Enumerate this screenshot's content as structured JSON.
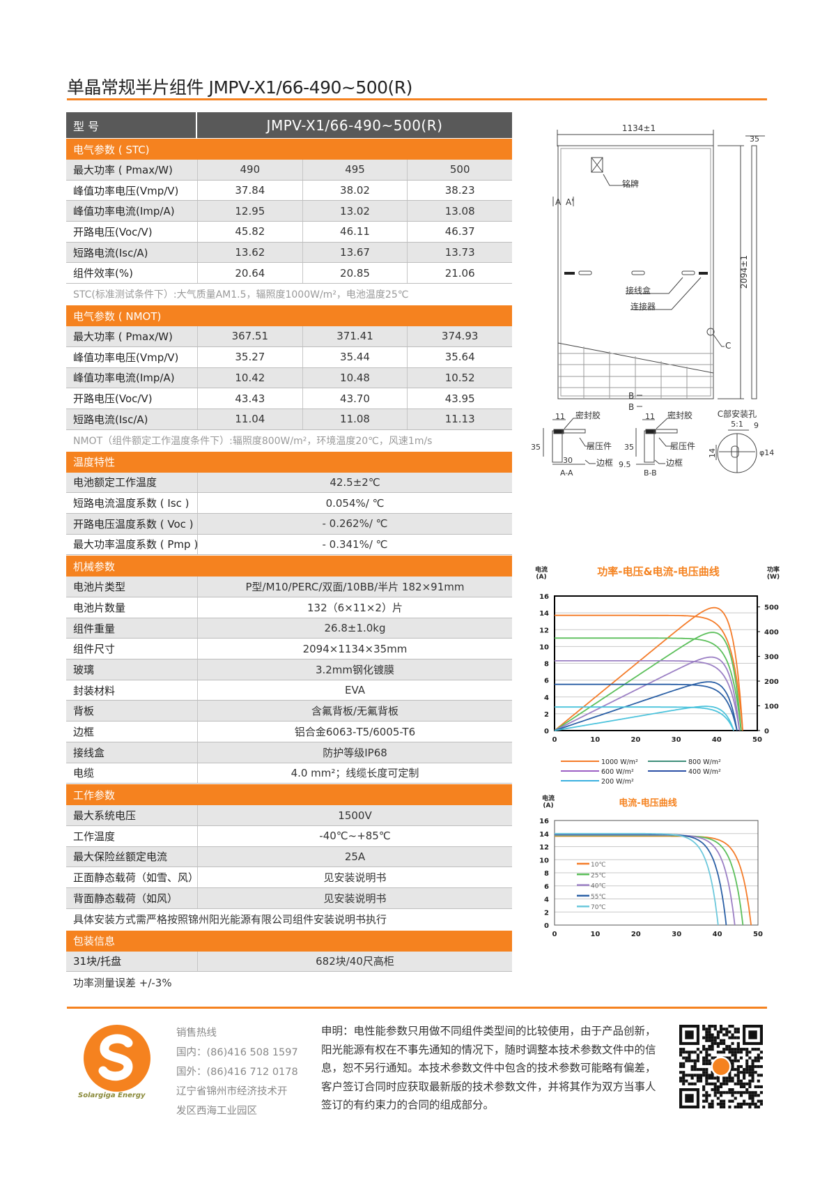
{
  "title": "单晶常规半片组件 JMPV-X1/66-490~500(R)",
  "colors": {
    "accent": "#f5821f",
    "header": "#595959",
    "row_alt": "#e6e6e6"
  },
  "spec_header": {
    "label": "型 号",
    "model": "JMPV-X1/66-490~500(R)"
  },
  "sections": [
    {
      "title": "电气参数 ( STC)",
      "rows": [
        {
          "label": "最大功率 ( Pmax/W)",
          "values": [
            "490",
            "495",
            "500"
          ]
        },
        {
          "label": "峰值功率电压(Vmp/V)",
          "values": [
            "37.84",
            "38.02",
            "38.23"
          ]
        },
        {
          "label": "峰值功率电流(Imp/A)",
          "values": [
            "12.95",
            "13.02",
            "13.08"
          ]
        },
        {
          "label": "开路电压(Voc/V)",
          "values": [
            "45.82",
            "46.11",
            "46.37"
          ]
        },
        {
          "label": "短路电流(Isc/A)",
          "values": [
            "13.62",
            "13.67",
            "13.73"
          ]
        },
        {
          "label": "组件效率(%)",
          "values": [
            "20.64",
            "20.85",
            "21.06"
          ]
        }
      ],
      "note": "STC(标准测试条件下）:大气质量AM1.5，辐照度1000W/m²，电池温度25℃"
    },
    {
      "title": "电气参数 ( NMOT)",
      "rows": [
        {
          "label": "最大功率 ( Pmax/W)",
          "values": [
            "367.51",
            "371.41",
            "374.93"
          ]
        },
        {
          "label": "峰值功率电压(Vmp/V)",
          "values": [
            "35.27",
            "35.44",
            "35.64"
          ]
        },
        {
          "label": "峰值功率电流(Imp/A)",
          "values": [
            "10.42",
            "10.48",
            "10.52"
          ]
        },
        {
          "label": "开路电压(Voc/V)",
          "values": [
            "43.43",
            "43.70",
            "43.95"
          ]
        },
        {
          "label": "短路电流(Isc/A)",
          "values": [
            "11.04",
            "11.08",
            "11.13"
          ]
        }
      ],
      "note": "NMOT（组件额定工作温度条件下）:辐照度800W/m²，环境温度20℃，风速1m/s"
    },
    {
      "title": "温度特性",
      "rows": [
        {
          "label": "电池额定工作温度",
          "values": [
            "42.5±2℃"
          ]
        },
        {
          "label": "短路电流温度系数 ( Isc )",
          "values": [
            "0.054%/ ℃"
          ]
        },
        {
          "label": "开路电压温度系数 ( Voc )",
          "values": [
            "- 0.262%/ ℃"
          ]
        },
        {
          "label": "最大功率温度系数 ( Pmp )",
          "values": [
            "- 0.341%/ ℃"
          ]
        }
      ]
    },
    {
      "title": "机械参数",
      "rows": [
        {
          "label": "电池片类型",
          "values": [
            "P型/M10/PERC/双面/10BB/半片  182×91mm"
          ]
        },
        {
          "label": "电池片数量",
          "values": [
            "132（6×11×2）片"
          ]
        },
        {
          "label": "组件重量",
          "values": [
            "26.8±1.0kg"
          ]
        },
        {
          "label": "组件尺寸",
          "values": [
            "2094×1134×35mm"
          ]
        },
        {
          "label": "玻璃",
          "values": [
            "3.2mm钢化镀膜"
          ]
        },
        {
          "label": "封装材料",
          "values": [
            "EVA"
          ]
        },
        {
          "label": "背板",
          "values": [
            "含氟背板/无氟背板"
          ]
        },
        {
          "label": "边框",
          "values": [
            "铝合金6063-T5/6005-T6"
          ]
        },
        {
          "label": "接线盒",
          "values": [
            "防护等级IP68"
          ]
        },
        {
          "label": "电缆",
          "values": [
            "4.0 mm²；线缆长度可定制"
          ]
        }
      ]
    },
    {
      "title": "工作参数",
      "rows": [
        {
          "label": "最大系统电压",
          "values": [
            "1500V"
          ]
        },
        {
          "label": "工作温度",
          "values": [
            "-40℃~+85℃"
          ]
        },
        {
          "label": "最大保险丝额定电流",
          "values": [
            "25A"
          ]
        },
        {
          "label": "正面静态载荷（如雪、风）",
          "values": [
            "见安装说明书"
          ]
        },
        {
          "label": "背面静态载荷（如风）",
          "values": [
            "见安装说明书"
          ]
        }
      ],
      "note": "具体安装方式需严格按照锦州阳光能源有限公司组件安装说明书执行",
      "note_dark": true
    },
    {
      "title": "包装信息",
      "rows": [
        {
          "label": "31块/托盘",
          "values": [
            "682块/40尺高柜"
          ]
        }
      ],
      "note": "功率测量误差  +/-3%",
      "note_dark": true
    }
  ],
  "drawing": {
    "width_dim": "1134±1",
    "height_dim": "2094±1",
    "depth_dim": "35",
    "nameplate": "铭牌",
    "junction_box": "接线盒",
    "connector": "连接器",
    "section_a": "A",
    "section_a2": "A'",
    "section_b": "B",
    "detail_c": "C",
    "sealant": "密封胶",
    "laminate": "层压件",
    "frame": "边框",
    "aa_label": "A-A",
    "bb_label": "B-B",
    "dim_11": "11",
    "dim_35": "35",
    "dim_30": "30",
    "dim_9_5": "9.5",
    "c_title": "C部安装孔",
    "c_scale": "5:1",
    "dim_9": "9",
    "dim_14": "14",
    "dim_phi14": "φ14"
  },
  "chart_data": [
    {
      "type": "line",
      "title": "功率-电压&电流-电压曲线",
      "ylabel": "电流\n(A)",
      "y2label": "功率\n(W)",
      "xlim": [
        0,
        50
      ],
      "ylim": [
        0,
        16
      ],
      "y2lim": [
        0,
        544
      ],
      "xticks": [
        0,
        10,
        20,
        30,
        40,
        50
      ],
      "yticks": [
        0,
        2,
        4,
        6,
        8,
        10,
        12,
        14,
        16
      ],
      "y2ticks": [
        0,
        100,
        200,
        300,
        400,
        500
      ],
      "grid": true,
      "legend": "bottom",
      "series": [
        {
          "name": "1000 W/m²",
          "color": "#f47b28",
          "isc": 13.7,
          "voc": 46.4,
          "pmax": 497
        },
        {
          "name": "800 W/m²",
          "color": "#5bbf5a",
          "isc": 11.0,
          "voc": 46.0,
          "pmax": 397
        },
        {
          "name": "600 W/m²",
          "color": "#9b7fc4",
          "isc": 8.3,
          "voc": 45.6,
          "pmax": 297
        },
        {
          "name": "400 W/m²",
          "color": "#2a5fa5",
          "isc": 5.5,
          "voc": 45.0,
          "pmax": 197
        },
        {
          "name": "200 W/m²",
          "color": "#4cc3dc",
          "isc": 2.8,
          "voc": 44.2,
          "pmax": 98
        }
      ],
      "legend_colors": [
        "#f47b28",
        "#3f8f7a",
        "#9b5fc4",
        "#2a4fa5",
        "#3ab0e0"
      ]
    },
    {
      "type": "line",
      "title": "电流-电压曲线",
      "ylabel": "电流\n(A)",
      "xlim": [
        0,
        50
      ],
      "ylim": [
        0,
        16
      ],
      "xticks": [
        0,
        10,
        20,
        30,
        40,
        50
      ],
      "yticks": [
        0,
        2,
        4,
        6,
        8,
        10,
        12,
        14,
        16
      ],
      "grid": true,
      "legend": "left",
      "series": [
        {
          "name": "10℃",
          "color": "#f47b28",
          "isc": 13.6,
          "voc": 48.3
        },
        {
          "name": "25℃",
          "color": "#5bbf5a",
          "isc": 13.7,
          "voc": 46.3
        },
        {
          "name": "40℃",
          "color": "#9b7fc4",
          "isc": 13.8,
          "voc": 44.3
        },
        {
          "name": "55℃",
          "color": "#2a5fa5",
          "isc": 13.9,
          "voc": 42.2
        },
        {
          "name": "70℃",
          "color": "#6cc8dc",
          "isc": 14.0,
          "voc": 40.2
        }
      ]
    }
  ],
  "footer": {
    "logo_text": "Solargiga Energy",
    "hotline_label": "销售热线",
    "domestic": "国内：(86)416 508 1597",
    "international": "国外：(86)416 712 0178",
    "address_1": "辽宁省锦州市经济技术开",
    "address_2": "发区西海工业园区",
    "disclaimer": "申明：电性能参数只用做不同组件类型间的比较使用，由于产品创新，阳光能源有权在不事先通知的情况下，随时调整本技术参数文件中的信息，恕不另行通知。本技术参数文件中包含的技术参数可能略有偏差，客户签订合同时应获取最新版的技术参数文件，并将其作为双方当事人签订的有约束力的合同的组成部分。"
  }
}
